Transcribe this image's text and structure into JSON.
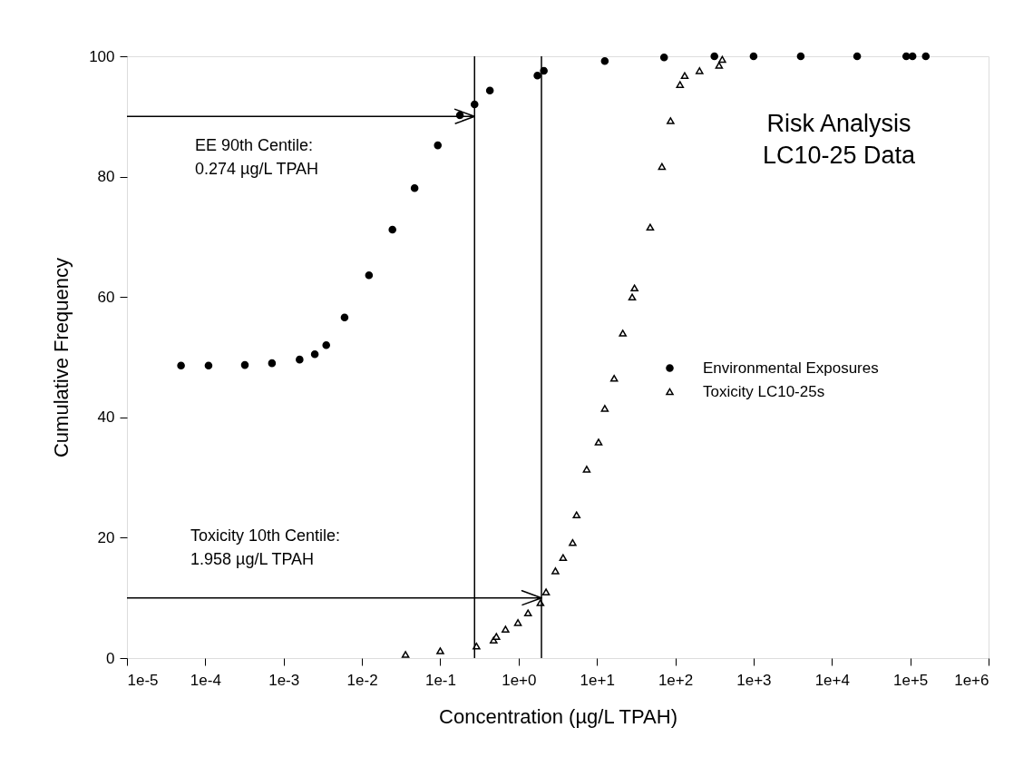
{
  "chart_data": {
    "type": "scatter",
    "title": "Risk Analysis\nLC10-25 Data",
    "xlabel": "Concentration (µg/L TPAH)",
    "ylabel": "Cumulative Frequency",
    "log": "x",
    "xlim": [
      1e-05,
      1000000.0
    ],
    "ylim": [
      0,
      100
    ],
    "xticks": [
      {
        "value": 1e-05,
        "label": "1e-5"
      },
      {
        "value": 0.0001,
        "label": "1e-4"
      },
      {
        "value": 0.001,
        "label": "1e-3"
      },
      {
        "value": 0.01,
        "label": "1e-2"
      },
      {
        "value": 0.1,
        "label": "1e-1"
      },
      {
        "value": 1,
        "label": "1e+0"
      },
      {
        "value": 10,
        "label": "1e+1"
      },
      {
        "value": 100,
        "label": "1e+2"
      },
      {
        "value": 1000,
        "label": "1e+3"
      },
      {
        "value": 10000,
        "label": "1e+4"
      },
      {
        "value": 100000,
        "label": "1e+5"
      },
      {
        "value": 1000000,
        "label": "1e+6"
      }
    ],
    "yticks": [
      0,
      20,
      40,
      60,
      80,
      100
    ],
    "grid": false,
    "legend": "right",
    "series": [
      {
        "name": "Environmental Exposures",
        "color": "#000000",
        "marker": "circle",
        "x": [
          4.9e-05,
          0.00011,
          0.00032,
          0.00071,
          0.0016,
          0.0025,
          0.0035,
          0.006,
          0.0123,
          0.0245,
          0.047,
          0.093,
          0.178,
          0.274,
          0.43,
          1.74,
          2.1,
          12.6,
          72,
          316,
          1000,
          4000,
          21000,
          89000,
          107000,
          158000
        ],
        "values": [
          48.6,
          48.6,
          48.7,
          49.0,
          49.6,
          50.5,
          52.0,
          56.6,
          63.6,
          71.2,
          78.1,
          85.2,
          90.2,
          92.0,
          94.3,
          96.8,
          97.6,
          99.2,
          99.8,
          100,
          100,
          100,
          100,
          100,
          100,
          100
        ]
      },
      {
        "name": "Toxicity LC10-25s",
        "color": "#000000",
        "marker": "triangle",
        "x": [
          0.036,
          0.1,
          0.29,
          0.48,
          0.52,
          0.68,
          0.98,
          1.32,
          1.9,
          2.24,
          2.95,
          3.7,
          4.9,
          5.5,
          7.4,
          10.5,
          12.6,
          16.6,
          21.4,
          28.2,
          30.2,
          47.9,
          67.6,
          87.1,
          115,
          132,
          204,
          363,
          398
        ],
        "values": [
          0.6,
          1.2,
          2.0,
          3.0,
          3.6,
          4.8,
          5.9,
          7.5,
          9.2,
          11.0,
          14.5,
          16.7,
          19.2,
          23.8,
          31.4,
          35.9,
          41.5,
          46.5,
          54.0,
          60.0,
          61.5,
          71.6,
          81.7,
          89.3,
          95.3,
          96.8,
          97.6,
          98.5,
          99.5
        ]
      }
    ],
    "ref_lines": [
      {
        "axis": "x",
        "value": 0.274,
        "color": "#000000"
      },
      {
        "axis": "x",
        "value": 1.958,
        "color": "#000000"
      },
      {
        "axis": "y",
        "value": 90,
        "color": "#000000"
      },
      {
        "axis": "y",
        "value": 10,
        "color": "#000000"
      }
    ],
    "annotations": [
      "EE 90th Centile:\n0.274 µg/L TPAH",
      "Toxicity 10th Centile:\n1.958 µg/L TPAH"
    ]
  }
}
